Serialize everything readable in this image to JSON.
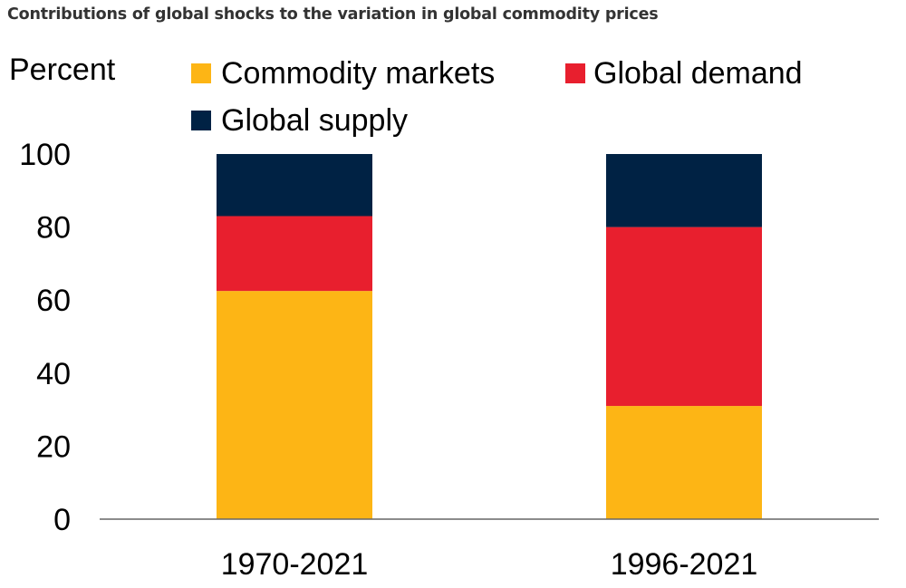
{
  "header": {
    "title": "Contributions of global shocks to the variation in global commodity prices"
  },
  "chart_data": {
    "type": "bar",
    "stacked": true,
    "title": "Contributions of global shocks to the variation in global commodity prices",
    "ylabel": "Percent",
    "xlabel": "",
    "ylim": [
      0,
      100
    ],
    "yticks": [
      "0",
      "20",
      "40",
      "60",
      "80",
      "100"
    ],
    "ytick_values": [
      0,
      20,
      40,
      60,
      80,
      100
    ],
    "grid": false,
    "legend_position": "top",
    "categories": [
      "1970-2021",
      "1996-2021"
    ],
    "series": [
      {
        "name": "Commodity markets",
        "color": "#FDB515",
        "values": [
          62.5,
          31
        ]
      },
      {
        "name": "Global demand",
        "color": "#E81F2E",
        "values": [
          20.5,
          49
        ]
      },
      {
        "name": "Global supply",
        "color": "#002244",
        "values": [
          17,
          20
        ]
      }
    ]
  }
}
